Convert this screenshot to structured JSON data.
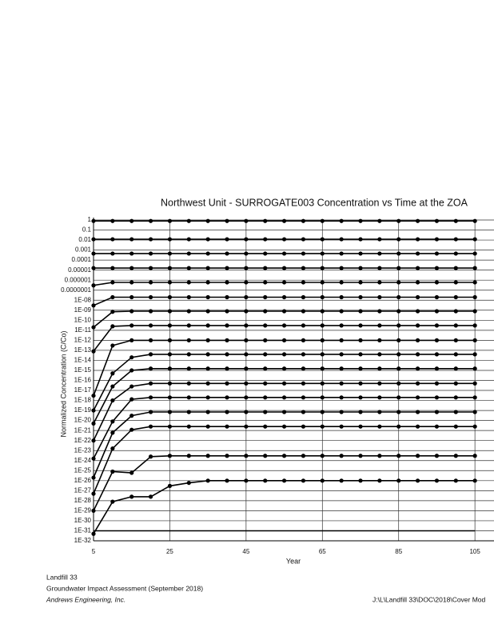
{
  "chart_data": {
    "type": "line",
    "title": "Northwest Unit - SURROGATE003 Concentration vs Time at the ZOA",
    "xlabel": "Year",
    "ylabel": "Normalized Concentration (C/Co)",
    "log_y": true,
    "grid": true,
    "xlim": [
      5,
      110
    ],
    "xticks": [
      5,
      25,
      45,
      65,
      85,
      105
    ],
    "ylim": [
      1e-32,
      1
    ],
    "yticks": [
      1,
      0.1,
      0.01,
      0.001,
      0.0001,
      1e-05,
      1e-06,
      {
        "value": 1e-07,
        "label": "0.0000001"
      },
      {
        "value": 1e-08,
        "label": "1E-08"
      },
      {
        "value": 1e-09,
        "label": "1E-09"
      },
      {
        "value": 1e-10,
        "label": "1E-10"
      },
      {
        "value": 1e-11,
        "label": "1E-11"
      },
      {
        "value": 1e-12,
        "label": "1E-12"
      },
      {
        "value": 1e-13,
        "label": "1E-13"
      },
      {
        "value": 1e-14,
        "label": "1E-14"
      },
      {
        "value": 1e-15,
        "label": "1E-15"
      },
      {
        "value": 1e-16,
        "label": "1E-16"
      },
      {
        "value": 1e-17,
        "label": "1E-17"
      },
      {
        "value": 1e-18,
        "label": "1E-18"
      },
      {
        "value": 1e-19,
        "label": "1E-19"
      },
      {
        "value": 1e-20,
        "label": "1E-20"
      },
      {
        "value": 1e-21,
        "label": "1E-21"
      },
      {
        "value": 1e-22,
        "label": "1E-22"
      },
      {
        "value": 1e-23,
        "label": "1E-23"
      },
      {
        "value": 1e-24,
        "label": "1E-24"
      },
      {
        "value": 1e-25,
        "label": "1E-25"
      },
      {
        "value": 1e-26,
        "label": "1E-26"
      },
      {
        "value": 1e-27,
        "label": "1E-27"
      },
      {
        "value": 1e-28,
        "label": "1E-28"
      },
      {
        "value": 1e-29,
        "label": "1E-29"
      },
      {
        "value": 1e-30,
        "label": "1E-30"
      },
      {
        "value": 1e-31,
        "label": "1E-31"
      },
      {
        "value": 1e-32,
        "label": "1E-32"
      }
    ],
    "x": [
      5,
      10,
      15,
      20,
      25,
      30,
      35,
      40,
      45,
      50,
      55,
      60,
      65,
      70,
      75,
      80,
      85,
      90,
      95,
      100,
      105
    ],
    "series": [
      {
        "color": "#000000",
        "marker": true,
        "values": [
          0.8,
          0.8,
          0.8,
          0.8,
          0.8,
          0.8,
          0.8,
          0.8,
          0.8,
          0.8,
          0.8,
          0.8,
          0.8,
          0.8,
          0.8,
          0.8,
          0.8,
          0.8,
          0.8,
          0.8,
          0.8
        ]
      },
      {
        "color": "#000000",
        "marker": true,
        "values": [
          0.012,
          0.012,
          0.012,
          0.012,
          0.012,
          0.012,
          0.012,
          0.012,
          0.012,
          0.012,
          0.012,
          0.012,
          0.012,
          0.012,
          0.012,
          0.012,
          0.012,
          0.012,
          0.012,
          0.012,
          0.012
        ]
      },
      {
        "color": "#000000",
        "marker": true,
        "values": [
          0.00045,
          0.00045,
          0.00045,
          0.00045,
          0.00045,
          0.00045,
          0.00045,
          0.00045,
          0.00045,
          0.00045,
          0.00045,
          0.00045,
          0.00045,
          0.00045,
          0.00045,
          0.00045,
          0.00045,
          0.00045,
          0.00045,
          0.00045,
          0.00045
        ]
      },
      {
        "color": "#000000",
        "marker": true,
        "values": [
          1.6e-05,
          1.6e-05,
          1.6e-05,
          1.6e-05,
          1.6e-05,
          1.6e-05,
          1.6e-05,
          1.6e-05,
          1.6e-05,
          1.6e-05,
          1.6e-05,
          1.6e-05,
          1.6e-05,
          1.6e-05,
          1.6e-05,
          1.6e-05,
          1.6e-05,
          1.6e-05,
          1.6e-05,
          1.6e-05,
          1.6e-05
        ]
      },
      {
        "color": "#000000",
        "marker": true,
        "values": [
          3e-07,
          6e-07,
          6e-07,
          6e-07,
          6e-07,
          6e-07,
          6e-07,
          6e-07,
          6e-07,
          6e-07,
          6e-07,
          6e-07,
          6e-07,
          6e-07,
          6e-07,
          6e-07,
          6e-07,
          6e-07,
          6e-07,
          6e-07,
          6e-07
        ]
      },
      {
        "color": "#000000",
        "marker": true,
        "values": [
          3e-09,
          2e-08,
          2e-08,
          2e-08,
          2e-08,
          2e-08,
          2e-08,
          2e-08,
          2e-08,
          2e-08,
          2e-08,
          2e-08,
          2e-08,
          2e-08,
          2e-08,
          2e-08,
          2e-08,
          2e-08,
          2e-08,
          2e-08,
          2e-08
        ]
      },
      {
        "color": "#000000",
        "marker": true,
        "values": [
          2e-11,
          7e-10,
          8e-10,
          8e-10,
          8e-10,
          8e-10,
          8e-10,
          8e-10,
          8e-10,
          8e-10,
          8e-10,
          8e-10,
          8e-10,
          8e-10,
          8e-10,
          8e-10,
          8e-10,
          8e-10,
          8e-10,
          8e-10,
          8e-10
        ]
      },
      {
        "color": "#000000",
        "marker": true,
        "values": [
          8e-14,
          2.5e-11,
          3e-11,
          3e-11,
          3e-11,
          3e-11,
          3e-11,
          3e-11,
          3e-11,
          3e-11,
          3e-11,
          3e-11,
          3e-11,
          3e-11,
          3e-11,
          3e-11,
          3e-11,
          3e-11,
          3e-11,
          3e-11,
          3e-11
        ]
      },
      {
        "color": "#000000",
        "marker": true,
        "values": [
          3e-18,
          3e-13,
          1e-12,
          1e-12,
          1e-12,
          1e-12,
          1e-12,
          1e-12,
          1e-12,
          1e-12,
          1e-12,
          1e-12,
          1e-12,
          1e-12,
          1e-12,
          1e-12,
          1e-12,
          1e-12,
          1e-12,
          1e-12,
          1e-12
        ]
      },
      {
        "color": "#000000",
        "marker": true,
        "values": [
          1e-19,
          5e-16,
          2e-14,
          4e-14,
          4e-14,
          4e-14,
          4e-14,
          4e-14,
          4e-14,
          4e-14,
          4e-14,
          4e-14,
          4e-14,
          4e-14,
          4e-14,
          4e-14,
          4e-14,
          4e-14,
          4e-14,
          4e-14,
          4e-14
        ]
      },
      {
        "color": "#000000",
        "marker": true,
        "values": [
          5e-21,
          2.5e-17,
          1e-15,
          1.5e-15,
          1.5e-15,
          1.5e-15,
          1.5e-15,
          1.5e-15,
          1.5e-15,
          1.5e-15,
          1.5e-15,
          1.5e-15,
          1.5e-15,
          1.5e-15,
          1.5e-15,
          1.5e-15,
          1.5e-15,
          1.5e-15,
          1.5e-15,
          1.5e-15,
          1.5e-15
        ]
      },
      {
        "color": "#000000",
        "marker": true,
        "values": [
          1e-22,
          1e-18,
          2.5e-17,
          5e-17,
          5e-17,
          5e-17,
          5e-17,
          5e-17,
          5e-17,
          5e-17,
          5e-17,
          5e-17,
          5e-17,
          5e-17,
          5e-17,
          5e-17,
          5e-17,
          5e-17,
          5e-17,
          5e-17,
          5e-17
        ]
      },
      {
        "color": "#000000",
        "marker": true,
        "values": [
          1.6e-24,
          8e-21,
          1.3e-18,
          2e-18,
          2e-18,
          2e-18,
          2e-18,
          2e-18,
          2e-18,
          2e-18,
          2e-18,
          2e-18,
          2e-18,
          2e-18,
          2e-18,
          2e-18,
          2e-18,
          2e-18,
          2e-18,
          2e-18,
          2e-18
        ]
      },
      {
        "color": "#000000",
        "marker": true,
        "values": [
          2e-26,
          6e-22,
          3e-20,
          7e-20,
          7e-20,
          7e-20,
          7e-20,
          7e-20,
          7e-20,
          7e-20,
          7e-20,
          7e-20,
          7e-20,
          7e-20,
          7e-20,
          7e-20,
          7e-20,
          7e-20,
          7e-20,
          7e-20,
          7e-20
        ]
      },
      {
        "color": "#000000",
        "marker": true,
        "values": [
          5e-28,
          1.6e-23,
          1.2e-21,
          2.5e-21,
          2.5e-21,
          2.5e-21,
          2.5e-21,
          2.5e-21,
          2.5e-21,
          2.5e-21,
          2.5e-21,
          2.5e-21,
          2.5e-21,
          2.5e-21,
          2.5e-21,
          2.5e-21,
          2.5e-21,
          2.5e-21,
          2.5e-21,
          2.5e-21,
          2.5e-21
        ]
      },
      {
        "color": "#000000",
        "marker": true,
        "values": [
          1e-29,
          8e-26,
          6e-26,
          2.5e-24,
          3e-24,
          3e-24,
          3e-24,
          3e-24,
          3e-24,
          3e-24,
          3e-24,
          3e-24,
          3e-24,
          3e-24,
          3e-24,
          3e-24,
          3e-24,
          3e-24,
          3e-24,
          3e-24,
          3e-24
        ]
      },
      {
        "color": "#000000",
        "marker": true,
        "values": [
          5e-32,
          8e-29,
          2.5e-28,
          2.5e-28,
          3e-27,
          6e-27,
          1e-26,
          1e-26,
          1e-26,
          1e-26,
          1e-26,
          1e-26,
          1e-26,
          1e-26,
          1e-26,
          1e-26,
          1e-26,
          1e-26,
          1e-26,
          1e-26,
          1e-26
        ]
      },
      {
        "color": "#000000",
        "marker": false,
        "values": [
          1e-31,
          1e-31,
          1e-31,
          1e-31,
          1e-31,
          1e-31,
          1e-31,
          1e-31,
          1e-31,
          1e-31,
          1e-31,
          1e-31,
          1e-31,
          1e-31,
          1e-31,
          1e-31,
          1e-31,
          1e-31,
          1e-31,
          1e-31,
          1e-31
        ]
      }
    ]
  },
  "footer": {
    "line1": "Landfill 33",
    "line2": "Groundwater Impact Assessment (September 2018)",
    "company": "Andrews Engineering, Inc.",
    "path": "J:\\L\\Landfill 33\\DOC\\2018\\Cover Mod"
  }
}
